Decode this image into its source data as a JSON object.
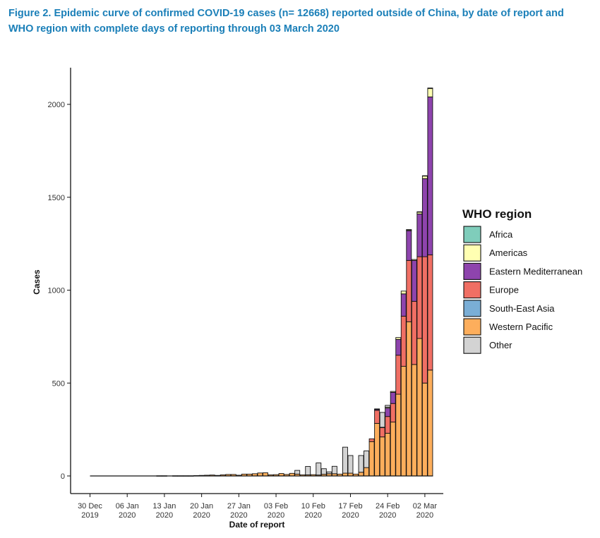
{
  "figure": {
    "title_line1": "Figure 2. Epidemic curve of confirmed COVID-19 cases (n= 12668) reported outside of China, by date of report and",
    "title_line2": "WHO region with complete days of reporting through 03 March 2020"
  },
  "chart_data": {
    "type": "bar",
    "stacked": true,
    "xlabel": "Date of report",
    "ylabel": "Cases",
    "ylim": [
      -90,
      2220
    ],
    "yticks": [
      0,
      500,
      1000,
      1500,
      2000
    ],
    "xtick_labels": [
      {
        "day": 0,
        "line1": "30 Dec",
        "line2": "2019"
      },
      {
        "day": 7,
        "line1": "06 Jan",
        "line2": "2020"
      },
      {
        "day": 14,
        "line1": "13 Jan",
        "line2": "2020"
      },
      {
        "day": 21,
        "line1": "20 Jan",
        "line2": "2020"
      },
      {
        "day": 28,
        "line1": "27 Jan",
        "line2": "2020"
      },
      {
        "day": 35,
        "line1": "03 Feb",
        "line2": "2020"
      },
      {
        "day": 42,
        "line1": "10 Feb",
        "line2": "2020"
      },
      {
        "day": 49,
        "line1": "17 Feb",
        "line2": "2020"
      },
      {
        "day": 56,
        "line1": "24 Feb",
        "line2": "2020"
      },
      {
        "day": 63,
        "line1": "02 Mar",
        "line2": "2020"
      }
    ],
    "legend_title": "WHO region",
    "legend_position": "right",
    "colors": {
      "Africa": "#7fcdbb",
      "Americas": "#ffffb2",
      "Eastern Mediterranean": "#8e44ad",
      "Europe": "#f06f64",
      "South-East Asia": "#7aaed6",
      "Western Pacific": "#fdae5c",
      "Other": "#d3d3d3"
    },
    "series_order": [
      "Western Pacific",
      "South-East Asia",
      "Europe",
      "Eastern Mediterranean",
      "Americas",
      "Africa",
      "Other"
    ],
    "legend_order": [
      "Africa",
      "Americas",
      "Eastern Mediterranean",
      "Europe",
      "South-East Asia",
      "Western Pacific",
      "Other"
    ],
    "days": [
      13,
      14,
      15,
      16,
      17,
      18,
      19,
      20,
      21,
      22,
      23,
      24,
      25,
      26,
      27,
      28,
      29,
      30,
      31,
      32,
      33,
      34,
      35,
      36,
      37,
      38,
      39,
      40,
      41,
      42,
      43,
      44,
      45,
      46,
      47,
      48,
      49,
      50,
      51,
      52,
      53,
      54,
      55,
      56,
      57,
      58,
      59,
      60,
      61,
      62,
      63,
      64
    ],
    "series": [
      {
        "name": "Western Pacific",
        "values": [
          1,
          1,
          0,
          1,
          1,
          1,
          1,
          2,
          3,
          4,
          5,
          3,
          6,
          8,
          8,
          4,
          10,
          10,
          12,
          16,
          17,
          6,
          7,
          13,
          8,
          14,
          10,
          6,
          6,
          7,
          5,
          9,
          12,
          12,
          10,
          15,
          15,
          10,
          20,
          45,
          185,
          283,
          210,
          230,
          290,
          440,
          590,
          830,
          600,
          740,
          500,
          570
        ]
      },
      {
        "name": "South-East Asia",
        "values": [
          0,
          0,
          0,
          0,
          0,
          0,
          0,
          0,
          0,
          0,
          0,
          0,
          0,
          0,
          0,
          0,
          0,
          0,
          0,
          0,
          0,
          0,
          0,
          0,
          0,
          0,
          0,
          0,
          0,
          0,
          0,
          0,
          0,
          0,
          0,
          0,
          0,
          0,
          0,
          0,
          0,
          0,
          0,
          0,
          0,
          0,
          0,
          0,
          0,
          0,
          0,
          0
        ]
      },
      {
        "name": "Europe",
        "values": [
          0,
          0,
          0,
          0,
          0,
          0,
          0,
          0,
          0,
          0,
          0,
          0,
          0,
          0,
          0,
          0,
          0,
          0,
          0,
          0,
          0,
          0,
          0,
          0,
          0,
          0,
          0,
          0,
          0,
          0,
          0,
          0,
          0,
          0,
          0,
          0,
          0,
          0,
          0,
          0,
          15,
          70,
          50,
          90,
          100,
          210,
          270,
          330,
          340,
          440,
          680,
          620
        ]
      },
      {
        "name": "Eastern Mediterranean",
        "values": [
          0,
          0,
          0,
          0,
          0,
          0,
          0,
          0,
          0,
          0,
          0,
          0,
          0,
          0,
          0,
          0,
          0,
          0,
          0,
          0,
          0,
          0,
          0,
          0,
          0,
          0,
          0,
          0,
          0,
          0,
          0,
          0,
          0,
          0,
          0,
          0,
          0,
          0,
          0,
          0,
          0,
          5,
          2,
          45,
          60,
          85,
          120,
          160,
          220,
          230,
          420,
          850
        ]
      },
      {
        "name": "Americas",
        "values": [
          0,
          0,
          0,
          0,
          0,
          0,
          0,
          0,
          0,
          0,
          0,
          0,
          0,
          0,
          0,
          0,
          0,
          0,
          0,
          0,
          0,
          0,
          0,
          0,
          0,
          0,
          0,
          0,
          0,
          0,
          0,
          0,
          0,
          0,
          0,
          0,
          0,
          0,
          0,
          0,
          0,
          3,
          0,
          5,
          5,
          10,
          15,
          5,
          5,
          10,
          15,
          45
        ]
      },
      {
        "name": "Africa",
        "values": [
          0,
          0,
          0,
          0,
          0,
          0,
          0,
          0,
          0,
          0,
          0,
          0,
          0,
          0,
          0,
          0,
          0,
          0,
          0,
          0,
          0,
          0,
          0,
          0,
          0,
          0,
          0,
          0,
          0,
          0,
          0,
          0,
          0,
          0,
          0,
          0,
          0,
          0,
          0,
          0,
          0,
          0,
          0,
          0,
          0,
          0,
          0,
          1,
          0,
          2,
          1,
          3
        ]
      },
      {
        "name": "Other",
        "values": [
          0,
          0,
          0,
          0,
          0,
          0,
          0,
          0,
          0,
          0,
          0,
          0,
          0,
          0,
          0,
          0,
          0,
          0,
          0,
          0,
          0,
          0,
          0,
          0,
          0,
          0,
          20,
          0,
          45,
          0,
          65,
          30,
          10,
          40,
          0,
          140,
          95,
          0,
          90,
          90,
          0,
          0,
          80,
          10,
          0,
          0,
          0,
          0,
          0,
          0,
          0,
          0
        ]
      }
    ]
  }
}
